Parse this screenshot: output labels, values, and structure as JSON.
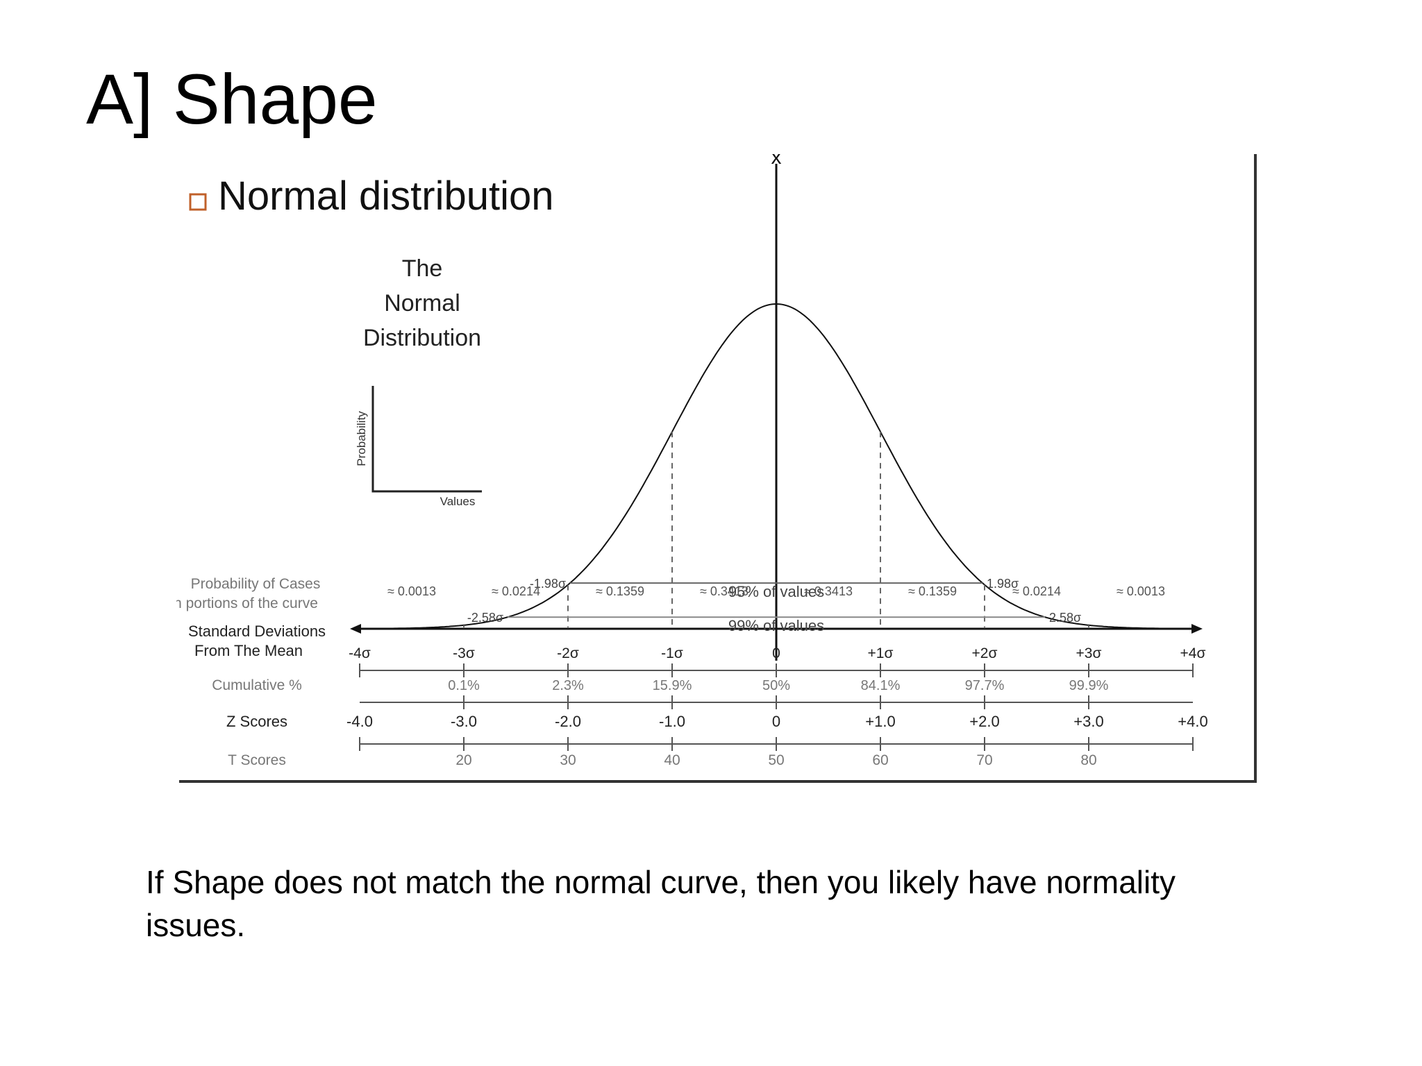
{
  "slide": {
    "title": "A] Shape",
    "caption": "If Shape does not match the normal curve, then you likely have normality issues."
  },
  "figure": {
    "bullet_text": "Normal distribution",
    "bullet_color": "#c0602a",
    "mean_symbol": "x̄",
    "inset_title": [
      "The",
      "Normal",
      "Distribution"
    ],
    "inset_y_label": "Probability",
    "inset_x_label": "Values",
    "band_95": {
      "left": "-1.98σ",
      "right": "1.98σ",
      "label": "95% of values"
    },
    "band_99": {
      "left": "-2.58σ",
      "right": "2.58σ",
      "label": "99% of values"
    },
    "probability_label": [
      "Probability of Cases",
      "n portions of the curve"
    ],
    "probabilities": [
      "≈ 0.0013",
      "≈ 0.0214",
      "≈ 0.1359",
      "≈ 0.3413",
      "≈ 0.3413",
      "≈ 0.1359",
      "≈ 0.0214",
      "≈ 0.0013"
    ],
    "sd_label": [
      "Standard Deviations",
      "From The Mean"
    ],
    "sd_ticks": [
      "-4σ",
      "-3σ",
      "-2σ",
      "-1σ",
      "0",
      "+1σ",
      "+2σ",
      "+3σ",
      "+4σ"
    ],
    "cumulative_label": "Cumulative %",
    "cumulative": [
      "0.1%",
      "2.3%",
      "15.9%",
      "50%",
      "84.1%",
      "97.7%",
      "99.9%"
    ],
    "z_label": "Z Scores",
    "z_scores": [
      "-4.0",
      "-3.0",
      "-2.0",
      "-1.0",
      "0",
      "+1.0",
      "+2.0",
      "+3.0",
      "+4.0"
    ],
    "t_label": "T Scores",
    "t_scores": [
      "20",
      "30",
      "40",
      "50",
      "60",
      "70",
      "80"
    ]
  }
}
